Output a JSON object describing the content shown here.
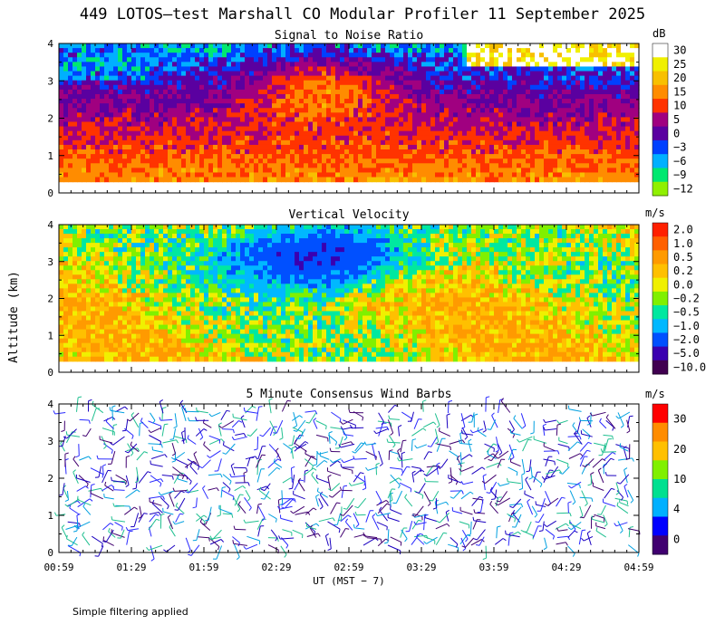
{
  "title": "449 LOTOS—test Marshall CO Modular Profiler 11 September 2025",
  "ylabel": "Altitude (km)",
  "xlabel": "UT  (MST − 7)",
  "footnote": "Simple filtering applied",
  "time_ticks": [
    "00:59",
    "01:29",
    "01:59",
    "02:29",
    "02:59",
    "03:29",
    "03:59",
    "04:29",
    "04:59"
  ],
  "altitude_ticks": [
    "0",
    "1",
    "2",
    "3",
    "4"
  ],
  "chart_data": [
    {
      "type": "heatmap",
      "title": "Signal to Noise Ratio",
      "unit": "dB",
      "x_range_ut": [
        "00:59",
        "04:59"
      ],
      "ylim_km": [
        0,
        4
      ],
      "colorbar_labels": [
        "30",
        "25",
        "20",
        "15",
        "10",
        "5",
        "0",
        "−3",
        "−6",
        "−9",
        "−12"
      ],
      "colorbar_colors": [
        "#ffffff",
        "#f0f000",
        "#f8c000",
        "#ff8c00",
        "#ff3300",
        "#a00080",
        "#5a00a0",
        "#0040ff",
        "#00b0ff",
        "#00e870",
        "#90f000"
      ]
    },
    {
      "type": "heatmap",
      "title": "Vertical Velocity",
      "unit": "m/s",
      "x_range_ut": [
        "00:59",
        "04:59"
      ],
      "ylim_km": [
        0,
        4
      ],
      "colorbar_labels": [
        "2.0",
        "1.0",
        "0.5",
        "0.2",
        "0.0",
        "−0.2",
        "−0.5",
        "−1.0",
        "−2.0",
        "−5.0",
        "−10.0"
      ],
      "colorbar_colors": [
        "#ff2000",
        "#ff6000",
        "#ff9a00",
        "#ffc000",
        "#f0f000",
        "#80f000",
        "#00e8a0",
        "#00b8ff",
        "#0050ff",
        "#3a00b0",
        "#400050"
      ]
    },
    {
      "type": "scatter",
      "title": "5 Minute Consensus Wind Barbs",
      "unit": "m/s",
      "x_range_ut": [
        "00:59",
        "04:59"
      ],
      "ylim_km": [
        0,
        4
      ],
      "colorbar_labels": [
        "30",
        "20",
        "10",
        "4",
        "0"
      ],
      "colorbar_colors": [
        "#ff0000",
        "#ff8c00",
        "#ffc000",
        "#80f000",
        "#00e090",
        "#00b0ff",
        "#0000ff",
        "#400070"
      ]
    }
  ]
}
